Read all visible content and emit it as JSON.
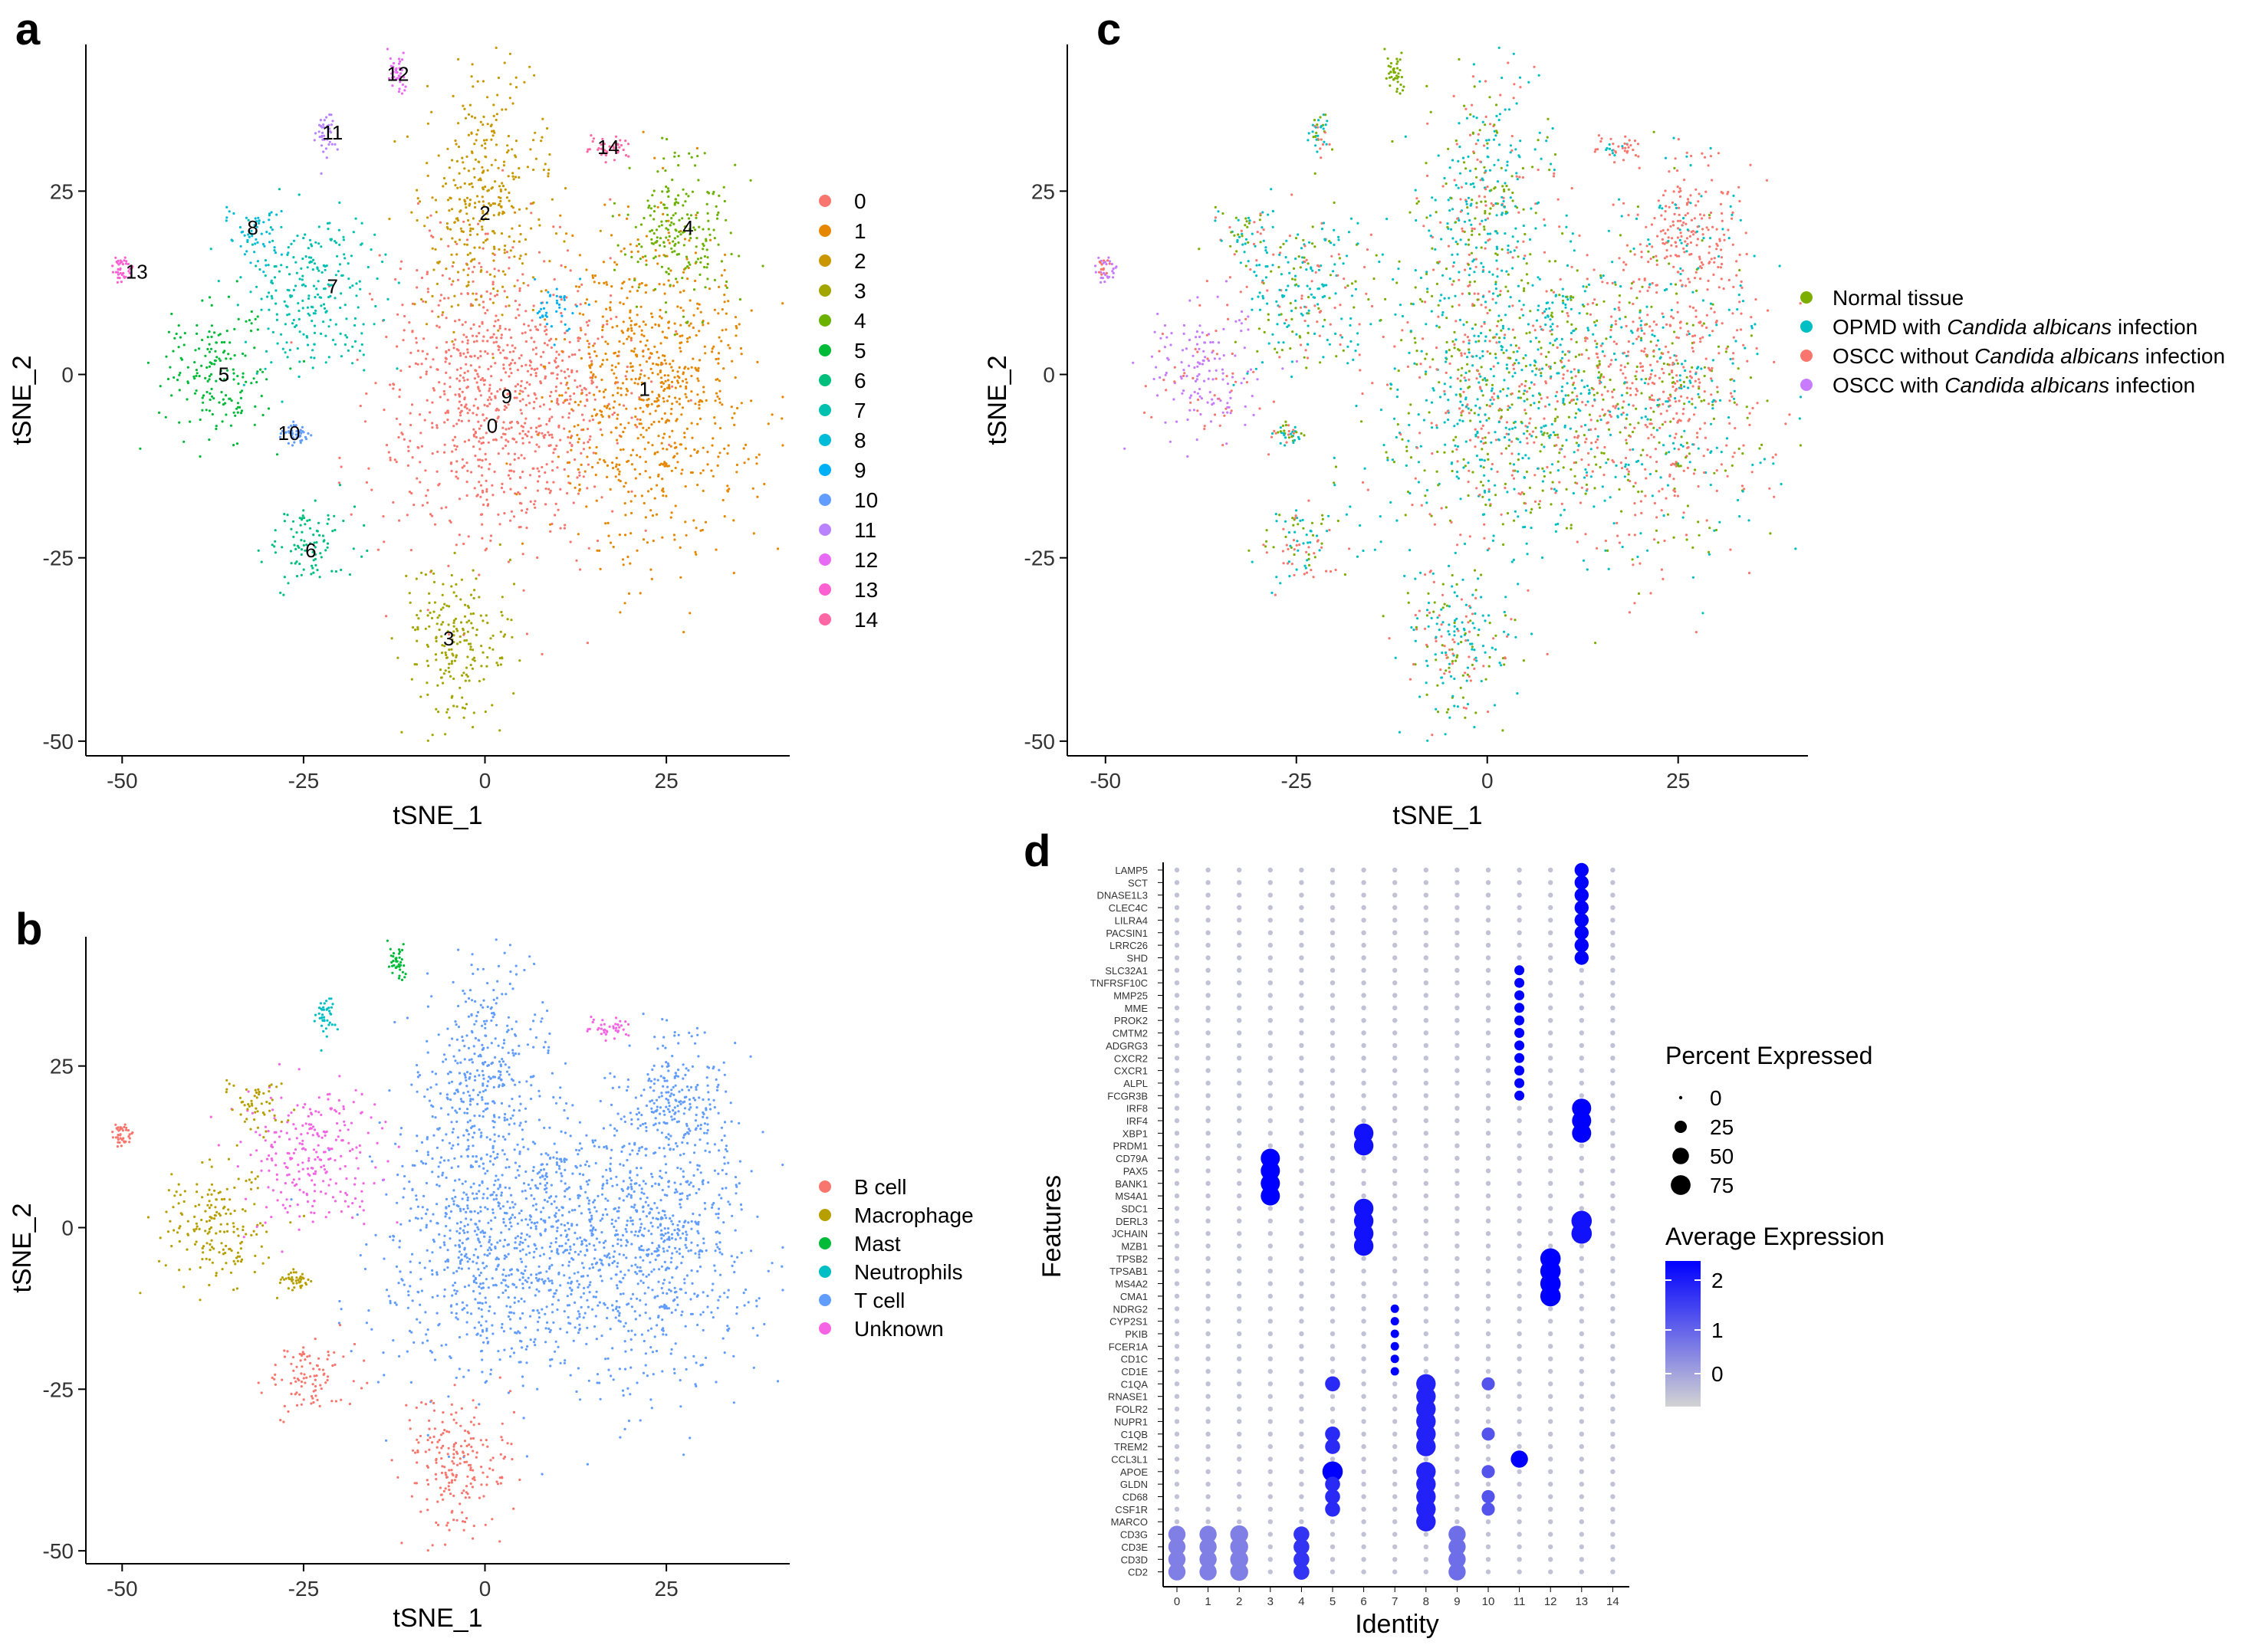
{
  "chart_data": [
    {
      "panel": "a",
      "type": "scatter",
      "title": "",
      "xlabel": "tSNE_1",
      "ylabel": "tSNE_2",
      "xlim": [
        -55,
        42
      ],
      "ylim": [
        -52,
        45
      ],
      "xticks": [
        -50,
        -25,
        0,
        25
      ],
      "yticks": [
        -50,
        -25,
        0,
        25
      ],
      "xtick_labels": [
        "-50",
        "-25",
        "0",
        "25"
      ],
      "ytick_labels": [
        "-50",
        "-25",
        "0",
        "25"
      ],
      "legend_position": "right",
      "colors": [
        "#F8766D",
        "#E58700",
        "#C99800",
        "#A3A500",
        "#6BB100",
        "#00BA38",
        "#00BF7D",
        "#00C0AF",
        "#00BCD8",
        "#00B0F6",
        "#619CFF",
        "#B983FF",
        "#E76BF3",
        "#FD61D1",
        "#FF67A4"
      ],
      "clusters": [
        {
          "id": "0",
          "label": "0",
          "cx": 2,
          "cy": -3,
          "sx": 11,
          "sy": 14,
          "label_x": 1,
          "label_y": -7
        },
        {
          "id": "1",
          "label": "1",
          "cx": 23,
          "cy": -2,
          "sx": 9,
          "sy": 14,
          "label_x": 22,
          "label_y": -2
        },
        {
          "id": "2",
          "label": "2",
          "cx": 0,
          "cy": 24,
          "sx": 6,
          "sy": 10,
          "label_x": 0,
          "label_y": 22
        },
        {
          "id": "3",
          "label": "3",
          "cx": -4,
          "cy": -36,
          "sx": 5,
          "sy": 7,
          "label_x": -5,
          "label_y": -36
        },
        {
          "id": "4",
          "label": "4",
          "cx": 27,
          "cy": 20,
          "sx": 5,
          "sy": 7,
          "label_x": 28,
          "label_y": 20
        },
        {
          "id": "5",
          "label": "5",
          "cx": -37,
          "cy": 0,
          "sx": 5,
          "sy": 6,
          "label_x": -36,
          "label_y": 0
        },
        {
          "id": "6",
          "label": "6",
          "cx": -24,
          "cy": -23,
          "sx": 4,
          "sy": 4,
          "label_x": -24,
          "label_y": -24
        },
        {
          "id": "7",
          "label": "7",
          "cx": -24,
          "cy": 11,
          "sx": 6,
          "sy": 7,
          "label_x": -21,
          "label_y": 12
        },
        {
          "id": "8",
          "label": "8",
          "cx": -32,
          "cy": 19,
          "sx": 3,
          "sy": 3,
          "label_x": -32,
          "label_y": 20
        },
        {
          "id": "9",
          "label": "9",
          "cx": 10,
          "cy": 9,
          "sx": 2,
          "sy": 2,
          "label_x": 3,
          "label_y": -3
        },
        {
          "id": "10",
          "label": "10",
          "cx": -26,
          "cy": -8,
          "sx": 1.2,
          "sy": 1,
          "label_x": -27,
          "label_y": -8
        },
        {
          "id": "11",
          "label": "11",
          "cx": -22,
          "cy": 33,
          "sx": 1,
          "sy": 2,
          "label_x": -21,
          "label_y": 33
        },
        {
          "id": "12",
          "label": "12",
          "cx": -12,
          "cy": 41,
          "sx": 0.8,
          "sy": 2,
          "label_x": -12,
          "label_y": 41
        },
        {
          "id": "13",
          "label": "13",
          "cx": -50,
          "cy": 14,
          "sx": 1,
          "sy": 1.5,
          "label_x": -48,
          "label_y": 14
        },
        {
          "id": "14",
          "label": "14",
          "cx": 17,
          "cy": 31,
          "sx": 2,
          "sy": 1,
          "label_x": 17,
          "label_y": 31
        }
      ]
    },
    {
      "panel": "b",
      "type": "scatter",
      "title": "",
      "xlabel": "tSNE_1",
      "ylabel": "tSNE_2",
      "xlim": [
        -55,
        42
      ],
      "ylim": [
        -52,
        45
      ],
      "xticks": [
        -50,
        -25,
        0,
        25
      ],
      "yticks": [
        -50,
        -25,
        0,
        25
      ],
      "xtick_labels": [
        "-50",
        "-25",
        "0",
        "25"
      ],
      "ytick_labels": [
        "-50",
        "-25",
        "0",
        "25"
      ],
      "legend_position": "right",
      "categories": [
        "B cell",
        "Macrophage",
        "Mast",
        "Neutrophils",
        "T cell",
        "Unknown"
      ],
      "colors": [
        "#F8766D",
        "#B79F00",
        "#00BA38",
        "#00BFC4",
        "#619CFF",
        "#F564E3"
      ]
    },
    {
      "panel": "c",
      "type": "scatter",
      "title": "",
      "xlabel": "tSNE_1",
      "ylabel": "tSNE_2",
      "xlim": [
        -55,
        42
      ],
      "ylim": [
        -52,
        45
      ],
      "xticks": [
        -50,
        -25,
        0,
        25
      ],
      "yticks": [
        -50,
        -25,
        0,
        25
      ],
      "xtick_labels": [
        "-50",
        "-25",
        "0",
        "25"
      ],
      "ytick_labels": [
        "-50",
        "-25",
        "0",
        "25"
      ],
      "legend_position": "right",
      "categories": [
        {
          "pre": "Normal tissue",
          "italic": "",
          "post": ""
        },
        {
          "pre": "OPMD with ",
          "italic": "Candida albicans",
          "post": " infection"
        },
        {
          "pre": "OSCC without ",
          "italic": "Candida albicans",
          "post": " infection"
        },
        {
          "pre": "OSCC with ",
          "italic": "Candida albicans",
          "post": " infection"
        }
      ],
      "colors": [
        "#7CAE00",
        "#00BFC4",
        "#F8766D",
        "#C77CFF"
      ]
    },
    {
      "panel": "d",
      "type": "dotplot",
      "xlabel": "Identity",
      "ylabel": "Features",
      "identities": [
        "0",
        "1",
        "2",
        "3",
        "4",
        "5",
        "6",
        "7",
        "8",
        "9",
        "10",
        "11",
        "12",
        "13",
        "14"
      ],
      "features": [
        "LAMP5",
        "SCT",
        "DNASE1L3",
        "CLEC4C",
        "LILRA4",
        "PACSIN1",
        "LRRC26",
        "SHD",
        "SLC32A1",
        "TNFRSF10C",
        "MMP25",
        "MME",
        "PROK2",
        "CMTM2",
        "ADGRG3",
        "CXCR2",
        "CXCR1",
        "ALPL",
        "FCGR3B",
        "IRF8",
        "IRF4",
        "XBP1",
        "PRDM1",
        "CD79A",
        "PAX5",
        "BANK1",
        "MS4A1",
        "SDC1",
        "DERL3",
        "JCHAIN",
        "MZB1",
        "TPSB2",
        "TPSAB1",
        "MS4A2",
        "CMA1",
        "NDRG2",
        "CYP2S1",
        "PKIB",
        "FCER1A",
        "CD1C",
        "CD1E",
        "C1QA",
        "RNASE1",
        "FOLR2",
        "NUPR1",
        "C1QB",
        "TREM2",
        "CCL3L1",
        "APOE",
        "GLDN",
        "CD68",
        "CSF1R",
        "MARCO",
        "CD3G",
        "CD3E",
        "CD3D",
        "CD2"
      ],
      "size_legend_title": "Percent Expressed",
      "size_legend_values": [
        0,
        25,
        50,
        75
      ],
      "size_legend_labels": [
        "0",
        "25",
        "50",
        "75"
      ],
      "color_legend_title": "Average Expression",
      "color_legend_labels": [
        "2",
        "1",
        "0"
      ],
      "color_range": [
        "#D3D3D3",
        "#0000FF"
      ]
    }
  ],
  "panel_labels": {
    "a": "a",
    "b": "b",
    "c": "c",
    "d": "d"
  }
}
